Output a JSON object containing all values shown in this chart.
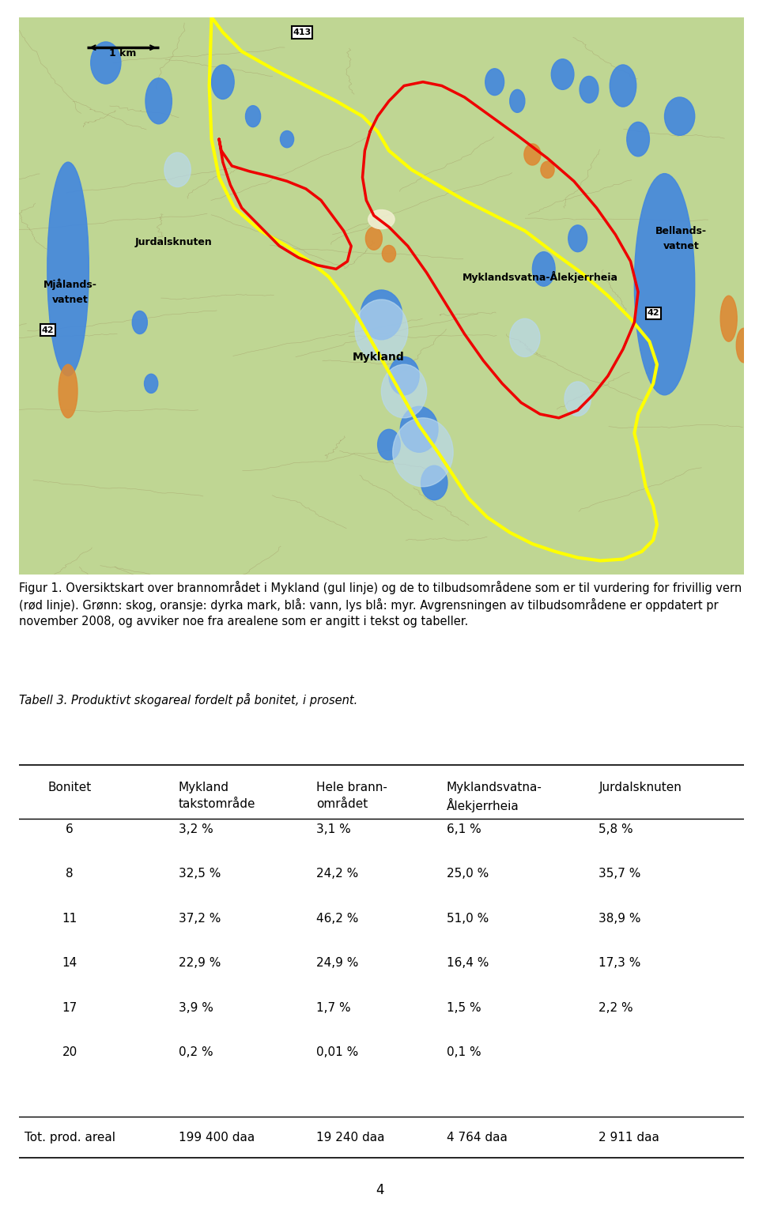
{
  "figure_caption_bold": "Figur 1.",
  "figure_caption_rest": " Oversiktskart over brannområdet i Mykland (gul linje) og de to tilbudsområdene som er til vurdering for frivillig vern (rød linje). Grønn: skog, oransje: dyrka mark, blå: vann, lys blå: myr. Avgrensningen av tilbudsområdene er oppdatert pr november 2008, og avviker noe fra arealene som er angitt i tekst og tabeller.",
  "table_caption": "Tabell 3. Produktivt skogareal fordelt på bonitet, i prosent.",
  "col_headers_line1": [
    "Bonitet",
    "Mykland",
    "Hele brann-",
    "Myklandsvatna-",
    "Jurdalsknuten"
  ],
  "col_headers_line2": [
    "",
    "takstområde",
    "området",
    "Ålekjerrheia",
    ""
  ],
  "table_data": [
    [
      "6",
      "3,2 %",
      "3,1 %",
      "6,1 %",
      "5,8 %"
    ],
    [
      "8",
      "32,5 %",
      "24,2 %",
      "25,0 %",
      "35,7 %"
    ],
    [
      "11",
      "37,2 %",
      "46,2 %",
      "51,0 %",
      "38,9 %"
    ],
    [
      "14",
      "22,9 %",
      "24,9 %",
      "16,4 %",
      "17,3 %"
    ],
    [
      "17",
      "3,9 %",
      "1,7 %",
      "1,5 %",
      "2,2 %"
    ],
    [
      "20",
      "0,2 %",
      "0,01 %",
      "0,1 %",
      ""
    ]
  ],
  "table_footer": [
    "Tot. prod. areal",
    "199 400 daa",
    "19 240 daa",
    "4 764 daa",
    "2 911 daa"
  ],
  "page_number": "4",
  "map_bg_color": "#b8cc88",
  "water_color": "#4488dd",
  "myr_color": "#b8d8ee",
  "orange_color": "#dd8833",
  "yellow_line": "#ffff00",
  "red_line": "#ee0000",
  "road_bg": "#ffffff",
  "caption_fontsize": 10.5,
  "table_caption_fontsize": 10.5,
  "table_fontsize": 11,
  "header_fontsize": 11
}
